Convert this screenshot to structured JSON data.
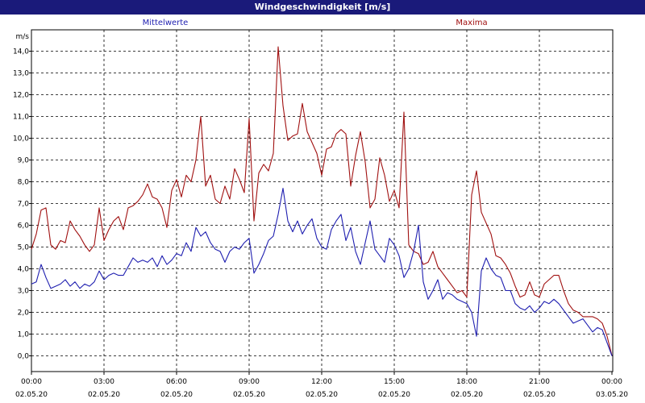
{
  "window": {
    "title": "Windgeschwindigkeit [m/s]"
  },
  "chart_data": {
    "type": "line",
    "title": "Windgeschwindigkeit [m/s]",
    "ylabel": "m/s",
    "ylim": [
      0,
      15
    ],
    "xlim_hours": [
      0,
      24
    ],
    "grid": true,
    "y_ticks": [
      "0,0",
      "1,0",
      "2,0",
      "3,0",
      "4,0",
      "5,0",
      "6,0",
      "7,0",
      "8,0",
      "9,0",
      "10,0",
      "11,0",
      "12,0",
      "13,0",
      "14,0"
    ],
    "x_ticks": [
      {
        "time": "00:00",
        "date": "02.05.20"
      },
      {
        "time": "03:00",
        "date": "02.05.20"
      },
      {
        "time": "06:00",
        "date": "02.05.20"
      },
      {
        "time": "09:00",
        "date": "02.05.20"
      },
      {
        "time": "12:00",
        "date": "02.05.20"
      },
      {
        "time": "15:00",
        "date": "02.05.20"
      },
      {
        "time": "18:00",
        "date": "02.05.20"
      },
      {
        "time": "21:00",
        "date": "02.05.20"
      },
      {
        "time": "00:00",
        "date": "03.05.20"
      }
    ],
    "series": [
      {
        "name": "Mittelwerte",
        "color": "#1f1fb0",
        "x": [
          0.0,
          0.2,
          0.4,
          0.6,
          0.8,
          1.0,
          1.2,
          1.4,
          1.6,
          1.8,
          2.0,
          2.2,
          2.4,
          2.6,
          2.8,
          3.0,
          3.2,
          3.4,
          3.6,
          3.8,
          4.0,
          4.2,
          4.4,
          4.6,
          4.8,
          5.0,
          5.2,
          5.4,
          5.6,
          5.8,
          6.0,
          6.2,
          6.4,
          6.6,
          6.8,
          7.0,
          7.2,
          7.4,
          7.6,
          7.8,
          8.0,
          8.2,
          8.4,
          8.6,
          8.8,
          9.0,
          9.2,
          9.4,
          9.6,
          9.8,
          10.0,
          10.2,
          10.4,
          10.6,
          10.8,
          11.0,
          11.2,
          11.4,
          11.6,
          11.8,
          12.0,
          12.2,
          12.4,
          12.6,
          12.8,
          13.0,
          13.2,
          13.4,
          13.6,
          13.8,
          14.0,
          14.2,
          14.4,
          14.6,
          14.8,
          15.0,
          15.2,
          15.4,
          15.6,
          15.8,
          16.0,
          16.2,
          16.4,
          16.6,
          16.8,
          17.0,
          17.2,
          17.4,
          17.6,
          17.8,
          18.0,
          18.2,
          18.4,
          18.6,
          18.8,
          19.0,
          19.2,
          19.4,
          19.6,
          19.8,
          20.0,
          20.2,
          20.4,
          20.6,
          20.8,
          21.0,
          21.2,
          21.4,
          21.6,
          21.8,
          22.0,
          22.2,
          22.4,
          22.6,
          22.8,
          23.0,
          23.2,
          23.4,
          23.6,
          23.8,
          24.0
        ],
        "values": [
          3.3,
          3.4,
          4.2,
          3.6,
          3.1,
          3.2,
          3.3,
          3.5,
          3.2,
          3.4,
          3.1,
          3.3,
          3.2,
          3.4,
          3.9,
          3.5,
          3.7,
          3.8,
          3.7,
          3.7,
          4.1,
          4.5,
          4.3,
          4.4,
          4.3,
          4.5,
          4.1,
          4.6,
          4.2,
          4.4,
          4.7,
          4.6,
          5.2,
          4.8,
          5.9,
          5.5,
          5.7,
          5.2,
          4.9,
          4.8,
          4.3,
          4.8,
          5.0,
          4.9,
          5.2,
          5.4,
          3.8,
          4.2,
          4.7,
          5.3,
          5.5,
          6.5,
          7.7,
          6.2,
          5.7,
          6.2,
          5.6,
          6.0,
          6.3,
          5.4,
          5.0,
          4.9,
          5.8,
          6.2,
          6.5,
          5.3,
          5.9,
          4.8,
          4.2,
          5.2,
          6.2,
          4.9,
          4.6,
          4.3,
          5.4,
          5.1,
          4.6,
          3.6,
          4.0,
          4.8,
          6.0,
          3.4,
          2.6,
          3.0,
          3.5,
          2.6,
          2.9,
          2.8,
          2.6,
          2.5,
          2.4,
          2.0,
          0.9,
          3.9,
          4.5,
          4.0,
          3.7,
          3.6,
          3.0,
          3.0,
          2.4,
          2.2,
          2.1,
          2.3,
          2.0,
          2.2,
          2.5,
          2.4,
          2.6,
          2.4,
          2.1,
          1.8,
          1.5,
          1.6,
          1.7,
          1.4,
          1.1,
          1.3,
          1.2,
          0.6,
          0.0
        ]
      },
      {
        "name": "Maxima",
        "color": "#a01010",
        "x": [
          0.0,
          0.2,
          0.4,
          0.6,
          0.8,
          1.0,
          1.2,
          1.4,
          1.6,
          1.8,
          2.0,
          2.2,
          2.4,
          2.6,
          2.8,
          3.0,
          3.2,
          3.4,
          3.6,
          3.8,
          4.0,
          4.2,
          4.4,
          4.6,
          4.8,
          5.0,
          5.2,
          5.4,
          5.6,
          5.8,
          6.0,
          6.2,
          6.4,
          6.6,
          6.8,
          7.0,
          7.2,
          7.4,
          7.6,
          7.8,
          8.0,
          8.2,
          8.4,
          8.6,
          8.8,
          9.0,
          9.2,
          9.4,
          9.6,
          9.8,
          10.0,
          10.2,
          10.4,
          10.6,
          10.8,
          11.0,
          11.2,
          11.4,
          11.6,
          11.8,
          12.0,
          12.2,
          12.4,
          12.6,
          12.8,
          13.0,
          13.2,
          13.4,
          13.6,
          13.8,
          14.0,
          14.2,
          14.4,
          14.6,
          14.8,
          15.0,
          15.2,
          15.4,
          15.6,
          15.8,
          16.0,
          16.2,
          16.4,
          16.6,
          16.8,
          17.0,
          17.2,
          17.4,
          17.6,
          17.8,
          18.0,
          18.2,
          18.4,
          18.6,
          18.8,
          19.0,
          19.2,
          19.4,
          19.6,
          19.8,
          20.0,
          20.2,
          20.4,
          20.6,
          20.8,
          21.0,
          21.2,
          21.4,
          21.6,
          21.8,
          22.0,
          22.2,
          22.4,
          22.6,
          22.8,
          23.0,
          23.2,
          23.4,
          23.6,
          23.8,
          24.0
        ],
        "values": [
          4.9,
          5.6,
          6.7,
          6.8,
          5.1,
          4.9,
          5.3,
          5.2,
          6.2,
          5.8,
          5.5,
          5.1,
          4.8,
          5.1,
          6.8,
          5.3,
          5.8,
          6.2,
          6.4,
          5.8,
          6.8,
          6.9,
          7.1,
          7.4,
          7.9,
          7.3,
          7.2,
          6.8,
          5.9,
          7.6,
          8.1,
          7.3,
          8.3,
          8.0,
          9.0,
          11.0,
          7.8,
          8.3,
          7.2,
          7.0,
          7.8,
          7.2,
          8.6,
          8.1,
          7.5,
          10.9,
          6.2,
          8.4,
          8.8,
          8.5,
          9.3,
          14.2,
          11.5,
          9.9,
          10.1,
          10.2,
          11.6,
          10.3,
          9.8,
          9.3,
          8.3,
          9.5,
          9.6,
          10.2,
          10.4,
          10.2,
          7.8,
          9.2,
          10.3,
          8.9,
          6.8,
          7.2,
          9.1,
          8.3,
          7.1,
          7.6,
          6.8,
          11.2,
          5.1,
          4.8,
          4.7,
          4.2,
          4.3,
          4.8,
          4.1,
          3.8,
          3.5,
          3.2,
          2.9,
          3.0,
          2.7,
          7.4,
          8.5,
          6.6,
          6.1,
          5.6,
          4.6,
          4.5,
          4.2,
          3.8,
          3.2,
          2.7,
          2.8,
          3.4,
          2.8,
          2.7,
          3.3,
          3.5,
          3.7,
          3.7,
          3.0,
          2.4,
          2.1,
          2.0,
          1.8,
          1.8,
          1.8,
          1.7,
          1.5,
          0.9,
          0.0
        ]
      }
    ]
  }
}
